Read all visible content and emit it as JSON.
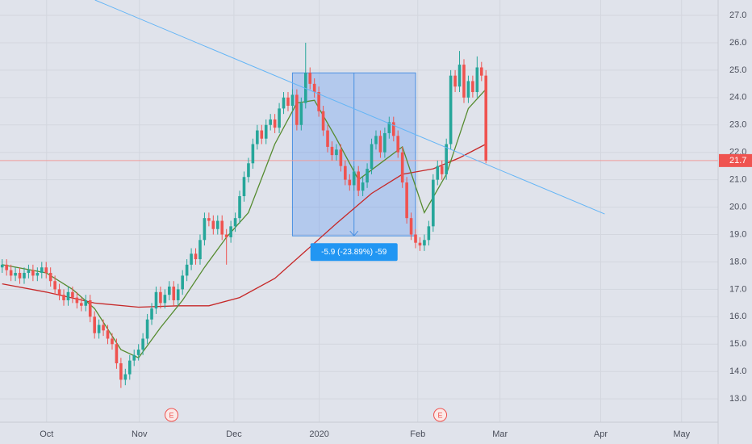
{
  "chart_data": {
    "type": "candlestick",
    "up_color": "#26a69a",
    "down_color": "#ef5350",
    "grid": true,
    "xlim": [
      -0.5,
      162.8
    ],
    "ylim": [
      12.15,
      27.56
    ],
    "xticks": [
      {
        "value": 10.1,
        "label": "Oct"
      },
      {
        "value": 31.2,
        "label": "Nov"
      },
      {
        "value": 52.7,
        "label": "Dec"
      },
      {
        "value": 72.1,
        "label": "2020"
      },
      {
        "value": 94.5,
        "label": "Feb"
      },
      {
        "value": 113.2,
        "label": "Mar"
      },
      {
        "value": 136.1,
        "label": "Apr"
      },
      {
        "value": 154.5,
        "label": "May"
      }
    ],
    "yticks": [
      {
        "value": 13,
        "label": "13.0"
      },
      {
        "value": 14,
        "label": "14.0"
      },
      {
        "value": 15,
        "label": "15.0"
      },
      {
        "value": 16,
        "label": "16.0"
      },
      {
        "value": 17,
        "label": "17.0"
      },
      {
        "value": 18,
        "label": "18.0"
      },
      {
        "value": 19,
        "label": "19.0"
      },
      {
        "value": 20,
        "label": "20.0"
      },
      {
        "value": 21,
        "label": "21.0"
      },
      {
        "value": 22,
        "label": "22.0"
      },
      {
        "value": 23,
        "label": "23.0"
      },
      {
        "value": 24,
        "label": "24.0"
      },
      {
        "value": 25,
        "label": "25.0"
      },
      {
        "value": 26,
        "label": "26.0"
      },
      {
        "value": 27,
        "label": "27.0"
      }
    ],
    "x": [
      0,
      1,
      2,
      3,
      4,
      5,
      6,
      7,
      8,
      9,
      10,
      11,
      12,
      13,
      14,
      15,
      16,
      17,
      18,
      19,
      20,
      21,
      22,
      23,
      24,
      25,
      26,
      27,
      28,
      29,
      30,
      31,
      32,
      33,
      34,
      35,
      36,
      37,
      38,
      39,
      40,
      41,
      42,
      43,
      44,
      45,
      46,
      47,
      48,
      49,
      50,
      51,
      52,
      53,
      54,
      55,
      56,
      57,
      58,
      59,
      60,
      61,
      62,
      63,
      64,
      65,
      66,
      67,
      68,
      69,
      70,
      71,
      72,
      73,
      74,
      75,
      76,
      77,
      78,
      79,
      80,
      81,
      82,
      83,
      84,
      85,
      86,
      87,
      88,
      89,
      90,
      91,
      92,
      93,
      94,
      95,
      96,
      97,
      98,
      99,
      100,
      101,
      102,
      103,
      104,
      105,
      106,
      107,
      108,
      109,
      110
    ],
    "open": [
      17.8,
      17.9,
      17.7,
      17.5,
      17.6,
      17.4,
      17.6,
      17.7,
      17.5,
      17.6,
      17.8,
      17.6,
      17.3,
      17.0,
      16.8,
      16.6,
      16.9,
      16.7,
      16.5,
      16.4,
      16.6,
      16.0,
      15.4,
      15.7,
      15.5,
      15.2,
      15.0,
      14.3,
      13.7,
      13.9,
      14.4,
      14.6,
      14.8,
      15.2,
      15.9,
      16.3,
      16.9,
      16.5,
      16.8,
      17.1,
      16.6,
      17.0,
      17.5,
      17.9,
      18.3,
      18.1,
      18.8,
      19.6,
      19.5,
      19.2,
      19.5,
      19.0,
      18.9,
      19.3,
      19.6,
      20.4,
      21.1,
      21.6,
      22.3,
      22.8,
      22.5,
      23.0,
      23.2,
      22.9,
      23.6,
      24.0,
      23.7,
      24.1,
      23.0,
      23.8,
      24.9,
      24.5,
      24.2,
      23.5,
      22.8,
      22.2,
      21.9,
      22.1,
      21.5,
      21.0,
      20.8,
      21.3,
      20.6,
      20.9,
      21.4,
      22.3,
      22.6,
      22.0,
      22.7,
      23.1,
      22.6,
      22.0,
      20.9,
      19.6,
      19.0,
      18.7,
      18.6,
      18.8,
      19.3,
      21.0,
      21.5,
      21.2,
      22.3,
      24.8,
      24.4,
      25.2,
      24.0,
      24.6,
      24.2,
      25.1,
      24.8
    ],
    "high": [
      18.1,
      18.1,
      17.9,
      17.8,
      17.8,
      17.8,
      17.9,
      17.9,
      17.8,
      18.0,
      18.0,
      17.8,
      17.5,
      17.2,
      17.0,
      17.1,
      17.1,
      16.9,
      16.7,
      16.8,
      16.8,
      16.2,
      15.9,
      15.9,
      15.7,
      15.4,
      15.2,
      14.5,
      14.1,
      14.6,
      14.8,
      15.0,
      15.4,
      16.1,
      16.5,
      17.1,
      17.1,
      17.0,
      17.3,
      17.3,
      17.2,
      17.7,
      18.1,
      18.5,
      18.5,
      19.0,
      19.8,
      19.8,
      19.7,
      19.7,
      19.7,
      19.2,
      19.5,
      19.8,
      20.6,
      21.3,
      21.8,
      22.5,
      23.0,
      23.0,
      23.2,
      23.4,
      23.4,
      23.8,
      24.2,
      24.2,
      24.3,
      24.3,
      24.0,
      26.0,
      25.1,
      24.7,
      24.4,
      23.7,
      23.0,
      22.4,
      22.3,
      22.3,
      21.7,
      21.2,
      21.5,
      21.5,
      21.1,
      21.6,
      22.5,
      22.8,
      22.8,
      22.9,
      23.3,
      23.3,
      22.8,
      22.2,
      21.1,
      19.8,
      19.2,
      18.9,
      19.0,
      19.5,
      21.2,
      21.7,
      21.7,
      22.5,
      25.0,
      25.0,
      25.7,
      25.4,
      24.8,
      24.8,
      25.5,
      25.3,
      25.0
    ],
    "low": [
      17.6,
      17.5,
      17.3,
      17.3,
      17.2,
      17.2,
      17.4,
      17.3,
      17.3,
      17.4,
      17.4,
      17.1,
      16.8,
      16.6,
      16.4,
      16.4,
      16.5,
      16.3,
      16.2,
      16.2,
      15.8,
      15.2,
      15.2,
      15.3,
      15.0,
      14.8,
      14.1,
      13.4,
      13.5,
      13.7,
      14.2,
      14.4,
      14.6,
      15.0,
      15.7,
      16.1,
      16.3,
      16.3,
      16.6,
      16.4,
      16.4,
      16.8,
      17.3,
      17.7,
      17.9,
      17.9,
      18.6,
      19.3,
      19.0,
      19.0,
      18.8,
      17.9,
      18.7,
      19.1,
      19.4,
      20.2,
      20.9,
      21.4,
      22.1,
      22.3,
      22.3,
      22.8,
      22.7,
      22.7,
      23.4,
      23.5,
      23.5,
      22.8,
      22.8,
      23.6,
      24.3,
      24.0,
      23.3,
      22.6,
      22.0,
      21.7,
      21.7,
      21.3,
      20.8,
      20.6,
      20.6,
      20.4,
      20.4,
      20.7,
      21.2,
      22.1,
      21.8,
      21.8,
      22.5,
      22.4,
      21.8,
      20.7,
      19.4,
      18.8,
      18.5,
      18.4,
      18.4,
      18.6,
      19.1,
      20.8,
      21.0,
      21.0,
      22.1,
      24.2,
      24.2,
      23.8,
      23.8,
      24.0,
      24.0,
      24.6,
      21.6
    ],
    "close": [
      17.9,
      17.7,
      17.5,
      17.6,
      17.4,
      17.6,
      17.7,
      17.5,
      17.6,
      17.8,
      17.6,
      17.3,
      17.0,
      16.8,
      16.6,
      16.9,
      16.7,
      16.5,
      16.4,
      16.6,
      16.0,
      15.4,
      15.7,
      15.5,
      15.2,
      15.0,
      14.3,
      13.7,
      13.9,
      14.4,
      14.6,
      14.8,
      15.2,
      15.9,
      16.3,
      16.9,
      16.5,
      16.8,
      17.1,
      16.6,
      17.0,
      17.5,
      17.9,
      18.3,
      18.1,
      18.8,
      19.6,
      19.5,
      19.2,
      19.5,
      19.0,
      18.9,
      19.3,
      19.6,
      20.4,
      21.1,
      21.6,
      22.3,
      22.8,
      22.5,
      23.0,
      23.2,
      22.9,
      23.6,
      24.0,
      23.7,
      24.1,
      23.0,
      23.8,
      24.9,
      24.5,
      24.2,
      23.5,
      22.8,
      22.2,
      21.9,
      22.1,
      21.5,
      21.0,
      20.8,
      21.3,
      20.6,
      20.9,
      21.4,
      22.3,
      22.6,
      22.0,
      22.7,
      23.1,
      22.6,
      22.0,
      20.9,
      19.6,
      19.0,
      18.7,
      18.6,
      18.8,
      19.3,
      21.0,
      21.5,
      21.2,
      22.3,
      24.8,
      24.4,
      25.2,
      24.0,
      24.6,
      24.2,
      25.1,
      24.8,
      21.7
    ],
    "series": [
      {
        "color": "#c62828",
        "x": [
          0,
          10,
          21,
          31,
          40,
          47,
          54,
          62,
          69,
          76,
          84,
          91,
          98,
          104,
          110
        ],
        "values": [
          17.2,
          16.9,
          16.5,
          16.35,
          16.4,
          16.4,
          16.7,
          17.4,
          18.4,
          19.4,
          20.5,
          21.2,
          21.4,
          21.8,
          22.3
        ]
      },
      {
        "color": "#558b2f",
        "x": [
          0,
          10,
          16,
          21,
          27,
          31,
          36,
          41,
          46,
          51,
          56,
          62,
          67,
          71,
          76,
          81,
          86,
          91,
          96,
          101,
          106,
          110
        ],
        "values": [
          17.9,
          17.6,
          17.0,
          16.3,
          14.8,
          14.5,
          15.6,
          16.6,
          17.8,
          18.9,
          19.8,
          22.3,
          23.8,
          23.9,
          22.5,
          21.0,
          21.6,
          22.2,
          19.8,
          21.2,
          23.6,
          24.3
        ]
      }
    ],
    "trendline": {
      "color": "#64b5f6",
      "x": [
        21.1,
        137
      ],
      "values": [
        27.56,
        19.75
      ]
    },
    "measure": {
      "x": [
        66,
        94
      ],
      "values": [
        24.9,
        18.95
      ],
      "label": "-5.9 (-23.89%) -59"
    },
    "last_price": 21.7,
    "events": [
      {
        "x": 38.5,
        "label": "E"
      },
      {
        "x": 99.6,
        "label": "E"
      }
    ]
  }
}
